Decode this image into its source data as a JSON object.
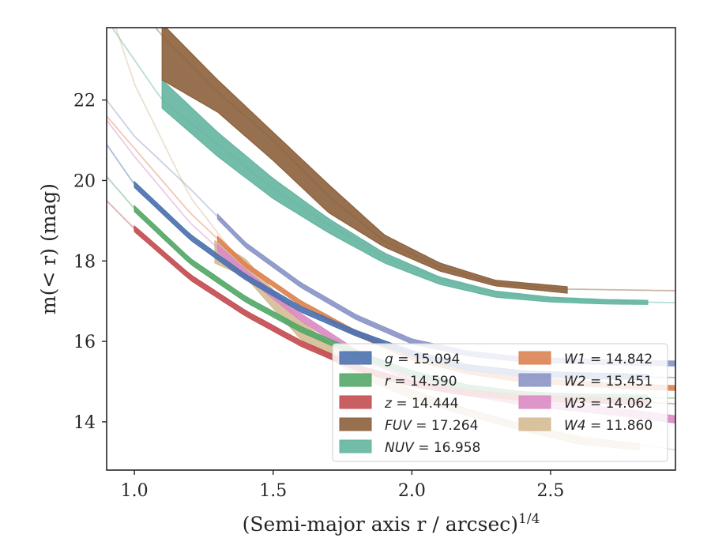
{
  "chart_data": {
    "type": "line",
    "xlabel": "(Semi-major axis r / arcsec)",
    "xlabel_superscript": "1/4",
    "ylabel": "m(< r) (mag)",
    "xlim": [
      0.9,
      2.95
    ],
    "ylim": [
      23.8,
      12.8
    ],
    "y_inverted": true,
    "grid": false,
    "legend_position": "lower-right",
    "x_ticks": [
      1.0,
      1.5,
      2.0,
      2.5
    ],
    "x_tick_labels": [
      "1.0",
      "1.5",
      "2.0",
      "2.5"
    ],
    "y_ticks": [
      14,
      16,
      18,
      20,
      22
    ],
    "y_tick_labels": [
      "14",
      "16",
      "18",
      "20",
      "22"
    ],
    "legend_columns": [
      [
        "g = 15.094",
        "r = 14.590",
        "z = 14.444",
        "FUV = 17.264",
        "NUV = 16.958"
      ],
      [
        "W1 = 14.842",
        "W2 = 15.451",
        "W3 = 14.062",
        "W4 = 11.860"
      ]
    ],
    "series": [
      {
        "name": "g = 15.094",
        "color": "#4c72b0",
        "x": [
          0.9,
          1.0,
          1.2,
          1.4,
          1.6,
          1.8,
          2.0,
          2.2,
          2.4,
          2.6,
          2.8,
          2.95
        ],
        "y": [
          20.9,
          19.9,
          18.6,
          17.6,
          16.8,
          16.2,
          15.7,
          15.35,
          15.2,
          15.15,
          15.12,
          15.1
        ],
        "band_x": [
          1.0,
          2.85
        ],
        "halfwidth": 0.07,
        "tail_x": [
          0.9,
          1.0
        ],
        "tail_halfwidth": 0.2
      },
      {
        "name": "r = 14.590",
        "color": "#55a868",
        "x": [
          0.9,
          1.0,
          1.2,
          1.4,
          1.6,
          1.8,
          2.0,
          2.2,
          2.4,
          2.6,
          2.8,
          2.95
        ],
        "y": [
          20.1,
          19.3,
          18.0,
          17.05,
          16.3,
          15.7,
          15.2,
          14.85,
          14.68,
          14.62,
          14.6,
          14.59
        ],
        "band_x": [
          1.0,
          2.85
        ],
        "halfwidth": 0.07,
        "tail_x": [
          0.9,
          1.0
        ],
        "tail_halfwidth": 0.3
      },
      {
        "name": "z = 14.444",
        "color": "#c44e52",
        "x": [
          0.9,
          1.0,
          1.2,
          1.4,
          1.6,
          1.8,
          2.0,
          2.2,
          2.4,
          2.6,
          2.8,
          2.95
        ],
        "y": [
          19.5,
          18.8,
          17.6,
          16.7,
          15.95,
          15.35,
          14.95,
          14.72,
          14.6,
          14.55,
          14.5,
          14.45
        ],
        "band_x": [
          1.0,
          2.85
        ],
        "halfwidth": 0.07,
        "tail_x": [
          0.9,
          1.0
        ],
        "tail_halfwidth": 0.25
      },
      {
        "name": "FUV = 17.264",
        "color": "#8c613c",
        "x": [
          0.9,
          1.1,
          1.3,
          1.5,
          1.7,
          1.9,
          2.1,
          2.3,
          2.55,
          2.75,
          2.95
        ],
        "y": [
          25.3,
          23.6,
          22.2,
          21.0,
          19.6,
          18.5,
          17.85,
          17.45,
          17.3,
          17.28,
          17.26
        ],
        "band_x": [
          1.1,
          2.56
        ],
        "band_upper": [
          22.5,
          21.7,
          20.5,
          19.2,
          18.35,
          17.75,
          17.38,
          17.2
        ],
        "band_lower": [
          23.9,
          22.5,
          21.2,
          19.9,
          18.65,
          17.95,
          17.52,
          17.36
        ],
        "band_nodes": [
          1.1,
          1.3,
          1.5,
          1.7,
          1.9,
          2.1,
          2.3,
          2.56
        ],
        "tail_x": [
          0.9,
          1.1
        ],
        "tail_halfwidth": 0.0
      },
      {
        "name": "NUV = 16.958",
        "color": "#64b5a0",
        "x": [
          0.9,
          1.1,
          1.3,
          1.5,
          1.7,
          1.9,
          2.1,
          2.3,
          2.5,
          2.7,
          2.95
        ],
        "y": [
          24.0,
          22.0,
          20.9,
          19.8,
          18.9,
          18.1,
          17.55,
          17.2,
          17.05,
          17.0,
          16.96
        ],
        "band_x": [
          1.1,
          2.85
        ],
        "band_upper": [
          21.8,
          20.6,
          19.55,
          18.7,
          17.95,
          17.42,
          17.1,
          16.98,
          16.93,
          16.92
        ],
        "band_lower": [
          22.5,
          21.2,
          20.05,
          19.05,
          18.2,
          17.6,
          17.25,
          17.1,
          17.04,
          17.02
        ],
        "band_nodes": [
          1.1,
          1.3,
          1.5,
          1.7,
          1.9,
          2.1,
          2.3,
          2.5,
          2.7,
          2.85
        ],
        "tail_x": [
          0.9,
          1.1
        ],
        "tail_halfwidth": 0.0
      },
      {
        "name": "W1 = 14.842",
        "color": "#dd8452",
        "x": [
          0.9,
          1.0,
          1.2,
          1.4,
          1.6,
          1.8,
          2.0,
          2.2,
          2.4,
          2.6,
          2.8,
          2.95
        ],
        "y": [
          21.6,
          20.8,
          19.2,
          17.9,
          16.95,
          16.2,
          15.6,
          15.25,
          15.05,
          14.95,
          14.88,
          14.84
        ],
        "band_x": [
          1.3,
          2.95
        ],
        "halfwidth": 0.06,
        "tail_x": [
          0.9,
          1.3
        ],
        "tail_halfwidth": 0.0
      },
      {
        "name": "W2 = 15.451",
        "color": "#8c96c6",
        "x": [
          0.9,
          1.0,
          1.2,
          1.4,
          1.6,
          1.8,
          2.0,
          2.2,
          2.4,
          2.6,
          2.8,
          2.95
        ],
        "y": [
          22.0,
          21.1,
          19.8,
          18.4,
          17.4,
          16.6,
          16.0,
          15.7,
          15.55,
          15.5,
          15.47,
          15.45
        ],
        "band_x": [
          1.3,
          2.95
        ],
        "halfwidth": 0.06,
        "tail_x": [
          0.9,
          1.3
        ],
        "tail_halfwidth": 0.0
      },
      {
        "name": "W3 = 14.062",
        "color": "#da8bc3",
        "x": [
          0.9,
          1.0,
          1.2,
          1.4,
          1.6,
          1.8,
          2.0,
          2.2,
          2.4,
          2.6,
          2.8,
          2.95
        ],
        "y": [
          21.5,
          20.6,
          18.95,
          17.7,
          16.6,
          15.7,
          15.1,
          14.75,
          14.5,
          14.35,
          14.2,
          14.06
        ],
        "band_x": [
          1.3,
          2.95
        ],
        "halfwidth": 0.09,
        "tail_x": [
          0.9,
          1.3
        ],
        "tail_halfwidth": 0.0
      },
      {
        "name": "W4 = 11.860",
        "color": "#d5bb93",
        "x": [
          0.9,
          1.0,
          1.2,
          1.4,
          1.6,
          1.8,
          2.0,
          2.2,
          2.4,
          2.6,
          2.8,
          2.95
        ],
        "y": [
          24.5,
          22.4,
          19.6,
          17.8,
          16.4,
          15.4,
          14.75,
          14.3,
          13.95,
          13.65,
          13.45,
          13.3
        ],
        "band_x": [
          1.29,
          2.82
        ],
        "band_upper": [
          17.95,
          17.6,
          16.05,
          15.15,
          14.58,
          14.15,
          13.78,
          13.45,
          13.3
        ],
        "band_lower": [
          18.5,
          18.05,
          16.5,
          15.45,
          14.8,
          14.32,
          13.93,
          13.62,
          13.45
        ],
        "band_nodes": [
          1.29,
          1.4,
          1.6,
          1.8,
          2.0,
          2.2,
          2.4,
          2.6,
          2.82
        ],
        "tail_x": [
          0.9,
          1.29
        ],
        "tail_halfwidth": 0.0
      }
    ]
  }
}
